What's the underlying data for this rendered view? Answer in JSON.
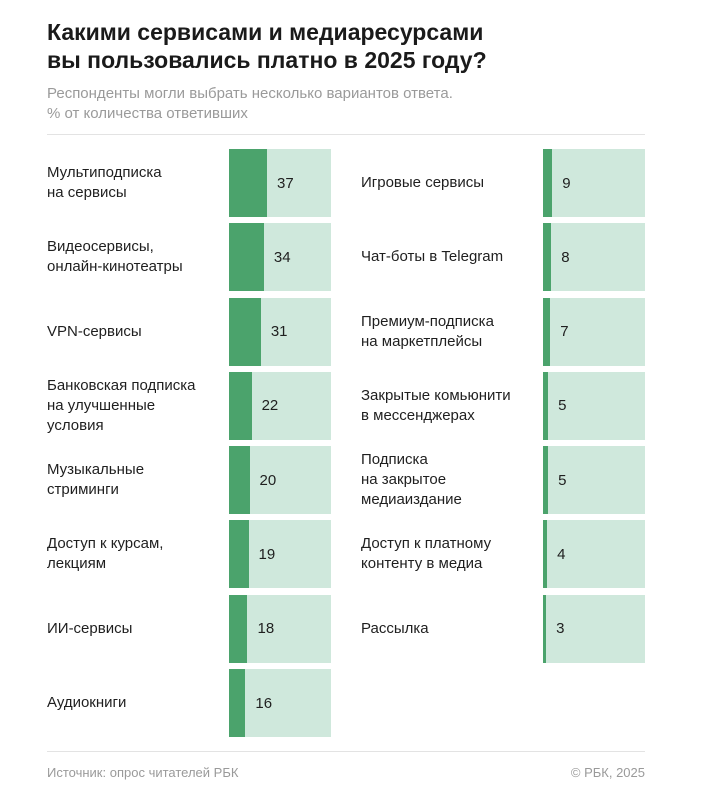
{
  "title_line1": "Какими сервисами и медиаресурсами",
  "title_line2": "вы пользовались платно в 2025 году?",
  "subtitle_line1": "Респонденты могли выбрать несколько вариантов ответа.",
  "subtitle_line2": "% от количества ответивших",
  "source": "Источник: опрос читателей РБК",
  "copyright": "© РБК, 2025",
  "colors": {
    "bar": "#4ba36c",
    "track": "#cfe8dc"
  },
  "chart_data": {
    "type": "bar",
    "title": "Какими сервисами и медиаресурсами вы пользовались платно в 2025 году?",
    "subtitle": "Респонденты могли выбрать несколько вариантов ответа. % от количества ответивших",
    "xlim": [
      0,
      100
    ],
    "categories": [
      "Мультиподписка на сервисы",
      "Видеосервисы, онлайн-кинотеатры",
      "VPN-сервисы",
      "Банковская подписка на улучшенные условия",
      "Музыкальные стриминги",
      "Доступ к курсам, лекциям",
      "ИИ-сервисы",
      "Аудиокниги",
      "Игровые сервисы",
      "Чат-боты в Telegram",
      "Премиум-подписка на маркетплейсы",
      "Закрытые комьюнити в мессенджерах",
      "Подписка на закрытое медиаиздание",
      "Доступ к платному контенту в медиа",
      "Рассылка"
    ],
    "display_labels": [
      "Мультиподписка\nна сервисы",
      "Видеосервисы,\nонлайн-кинотеатры",
      "VPN-сервисы",
      "Банковская подписка\nна улучшенные\nусловия",
      "Музыкальные\nстриминги",
      "Доступ к курсам,\nлекциям",
      "ИИ-сервисы",
      "Аудиокниги",
      "Игровые сервисы",
      "Чат-боты в Telegram",
      "Премиум-подписка\nна маркетплейсы",
      "Закрытые комьюнити\nв мессенджерах",
      "Подписка\nна закрытое\nмедиаиздание",
      "Доступ к платному\nконтенту в медиа",
      "Рассылка"
    ],
    "values": [
      37,
      34,
      31,
      22,
      20,
      19,
      18,
      16,
      9,
      8,
      7,
      5,
      5,
      4,
      3
    ]
  }
}
